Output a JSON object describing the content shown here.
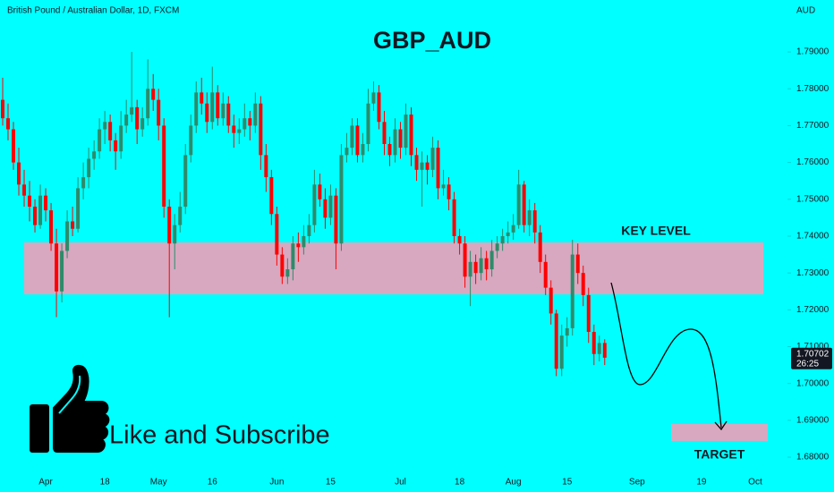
{
  "chart_data": {
    "type": "candlestick",
    "header": "British Pound / Australian Dollar, 1D, FXCM",
    "currency": "AUD",
    "title": "GBP_AUD",
    "caption": "Like and Subscribe",
    "up_color": "#2e8b6a",
    "down_color": "#ff0000",
    "ylim": [
      1.6754,
      1.8041
    ],
    "yticks": [
      {
        "value": 1.68,
        "label": "1.68000"
      },
      {
        "value": 1.69,
        "label": "1.69000"
      },
      {
        "value": 1.7,
        "label": "1.70000"
      },
      {
        "value": 1.71,
        "label": "1.71000"
      },
      {
        "value": 1.72,
        "label": "1.72000"
      },
      {
        "value": 1.73,
        "label": "1.73000"
      },
      {
        "value": 1.74,
        "label": "1.74000"
      },
      {
        "value": 1.75,
        "label": "1.75000"
      },
      {
        "value": 1.76,
        "label": "1.76000"
      },
      {
        "value": 1.77,
        "label": "1.77000"
      },
      {
        "value": 1.78,
        "label": "1.78000"
      },
      {
        "value": 1.79,
        "label": "1.79000"
      }
    ],
    "xlim": [
      -0.5,
      146
    ],
    "xticks": [
      {
        "value": 8,
        "label": "Apr"
      },
      {
        "value": 19,
        "label": "18"
      },
      {
        "value": 29,
        "label": "May"
      },
      {
        "value": 39,
        "label": "16"
      },
      {
        "value": 51,
        "label": "Jun"
      },
      {
        "value": 61,
        "label": "15"
      },
      {
        "value": 74,
        "label": "Jul"
      },
      {
        "value": 85,
        "label": "18"
      },
      {
        "value": 95,
        "label": "Aug"
      },
      {
        "value": 105,
        "label": "15"
      },
      {
        "value": 118,
        "label": "Sep"
      },
      {
        "value": 130,
        "label": "19"
      },
      {
        "value": 140,
        "label": "Oct"
      }
    ],
    "last_price": {
      "value": 1.70702,
      "label": "1.70702"
    },
    "countdown": "26:25",
    "zones": [
      {
        "label": "KEY LEVEL",
        "range": [
          1.7242,
          1.7383
        ],
        "color": "#d8a8c0"
      },
      {
        "label": "TARGET",
        "range": [
          1.6844,
          1.689
        ],
        "color": "#d8a8c0"
      }
    ],
    "candles": [
      [
        1.777,
        1.783,
        1.77,
        1.772
      ],
      [
        1.772,
        1.776,
        1.766,
        1.769
      ],
      [
        1.769,
        1.771,
        1.758,
        1.76
      ],
      [
        1.76,
        1.764,
        1.751,
        1.754
      ],
      [
        1.754,
        1.758,
        1.748,
        1.751
      ],
      [
        1.751,
        1.755,
        1.744,
        1.748
      ],
      [
        1.748,
        1.75,
        1.741,
        1.743
      ],
      [
        1.743,
        1.754,
        1.742,
        1.751
      ],
      [
        1.751,
        1.753,
        1.744,
        1.747
      ],
      [
        1.747,
        1.749,
        1.736,
        1.738
      ],
      [
        1.738,
        1.742,
        1.718,
        1.725
      ],
      [
        1.725,
        1.738,
        1.722,
        1.736
      ],
      [
        1.736,
        1.747,
        1.734,
        1.744
      ],
      [
        1.744,
        1.748,
        1.74,
        1.742
      ],
      [
        1.742,
        1.756,
        1.741,
        1.753
      ],
      [
        1.753,
        1.76,
        1.75,
        1.756
      ],
      [
        1.756,
        1.764,
        1.753,
        1.761
      ],
      [
        1.761,
        1.766,
        1.758,
        1.763
      ],
      [
        1.763,
        1.772,
        1.761,
        1.769
      ],
      [
        1.769,
        1.774,
        1.765,
        1.771
      ],
      [
        1.771,
        1.773,
        1.763,
        1.766
      ],
      [
        1.766,
        1.768,
        1.758,
        1.763
      ],
      [
        1.763,
        1.774,
        1.761,
        1.77
      ],
      [
        1.77,
        1.777,
        1.768,
        1.773
      ],
      [
        1.773,
        1.79,
        1.771,
        1.775
      ],
      [
        1.775,
        1.777,
        1.765,
        1.769
      ],
      [
        1.769,
        1.775,
        1.767,
        1.772
      ],
      [
        1.772,
        1.788,
        1.77,
        1.78
      ],
      [
        1.78,
        1.784,
        1.774,
        1.777
      ],
      [
        1.777,
        1.78,
        1.766,
        1.77
      ],
      [
        1.77,
        1.772,
        1.745,
        1.748
      ],
      [
        1.748,
        1.75,
        1.718,
        1.738
      ],
      [
        1.738,
        1.746,
        1.731,
        1.743
      ],
      [
        1.743,
        1.752,
        1.741,
        1.748
      ],
      [
        1.748,
        1.765,
        1.746,
        1.762
      ],
      [
        1.762,
        1.773,
        1.76,
        1.77
      ],
      [
        1.77,
        1.782,
        1.768,
        1.779
      ],
      [
        1.779,
        1.783,
        1.773,
        1.776
      ],
      [
        1.776,
        1.779,
        1.768,
        1.771
      ],
      [
        1.771,
        1.786,
        1.769,
        1.779
      ],
      [
        1.779,
        1.781,
        1.77,
        1.772
      ],
      [
        1.772,
        1.779,
        1.77,
        1.776
      ],
      [
        1.776,
        1.778,
        1.768,
        1.77
      ],
      [
        1.77,
        1.773,
        1.764,
        1.768
      ],
      [
        1.768,
        1.772,
        1.765,
        1.769
      ],
      [
        1.769,
        1.776,
        1.767,
        1.772
      ],
      [
        1.772,
        1.774,
        1.766,
        1.77
      ],
      [
        1.77,
        1.779,
        1.768,
        1.776
      ],
      [
        1.776,
        1.778,
        1.758,
        1.762
      ],
      [
        1.762,
        1.765,
        1.752,
        1.756
      ],
      [
        1.756,
        1.758,
        1.743,
        1.746
      ],
      [
        1.746,
        1.748,
        1.732,
        1.735
      ],
      [
        1.735,
        1.737,
        1.727,
        1.729
      ],
      [
        1.729,
        1.734,
        1.727,
        1.731
      ],
      [
        1.731,
        1.74,
        1.728,
        1.738
      ],
      [
        1.738,
        1.741,
        1.733,
        1.737
      ],
      [
        1.737,
        1.743,
        1.735,
        1.74
      ],
      [
        1.74,
        1.746,
        1.738,
        1.743
      ],
      [
        1.743,
        1.758,
        1.741,
        1.754
      ],
      [
        1.754,
        1.757,
        1.748,
        1.75
      ],
      [
        1.75,
        1.753,
        1.742,
        1.745
      ],
      [
        1.745,
        1.754,
        1.743,
        1.751
      ],
      [
        1.751,
        1.753,
        1.731,
        1.738
      ],
      [
        1.738,
        1.765,
        1.736,
        1.762
      ],
      [
        1.762,
        1.768,
        1.76,
        1.764
      ],
      [
        1.764,
        1.772,
        1.762,
        1.77
      ],
      [
        1.77,
        1.772,
        1.76,
        1.762
      ],
      [
        1.762,
        1.768,
        1.76,
        1.765
      ],
      [
        1.765,
        1.78,
        1.763,
        1.776
      ],
      [
        1.776,
        1.782,
        1.774,
        1.779
      ],
      [
        1.779,
        1.781,
        1.769,
        1.771
      ],
      [
        1.771,
        1.774,
        1.762,
        1.765
      ],
      [
        1.765,
        1.767,
        1.759,
        1.762
      ],
      [
        1.762,
        1.772,
        1.76,
        1.769
      ],
      [
        1.769,
        1.771,
        1.761,
        1.764
      ],
      [
        1.764,
        1.776,
        1.762,
        1.773
      ],
      [
        1.773,
        1.775,
        1.759,
        1.762
      ],
      [
        1.762,
        1.764,
        1.755,
        1.758
      ],
      [
        1.758,
        1.763,
        1.748,
        1.76
      ],
      [
        1.76,
        1.762,
        1.754,
        1.758
      ],
      [
        1.758,
        1.767,
        1.756,
        1.764
      ],
      [
        1.764,
        1.766,
        1.75,
        1.753
      ],
      [
        1.753,
        1.758,
        1.751,
        1.754
      ],
      [
        1.754,
        1.756,
        1.747,
        1.75
      ],
      [
        1.75,
        1.752,
        1.738,
        1.74
      ],
      [
        1.74,
        1.742,
        1.735,
        1.738
      ],
      [
        1.738,
        1.74,
        1.726,
        1.729
      ],
      [
        1.729,
        1.736,
        1.721,
        1.733
      ],
      [
        1.733,
        1.735,
        1.727,
        1.73
      ],
      [
        1.73,
        1.737,
        1.728,
        1.734
      ],
      [
        1.734,
        1.736,
        1.728,
        1.731
      ],
      [
        1.731,
        1.739,
        1.729,
        1.736
      ],
      [
        1.736,
        1.74,
        1.734,
        1.738
      ],
      [
        1.738,
        1.742,
        1.736,
        1.74
      ],
      [
        1.74,
        1.744,
        1.738,
        1.741
      ],
      [
        1.741,
        1.746,
        1.739,
        1.743
      ],
      [
        1.743,
        1.758,
        1.742,
        1.754
      ],
      [
        1.754,
        1.755,
        1.741,
        1.743
      ],
      [
        1.743,
        1.75,
        1.74,
        1.747
      ],
      [
        1.747,
        1.749,
        1.738,
        1.741
      ],
      [
        1.741,
        1.743,
        1.73,
        1.733
      ],
      [
        1.733,
        1.735,
        1.724,
        1.726
      ],
      [
        1.726,
        1.728,
        1.716,
        1.719
      ],
      [
        1.719,
        1.72,
        1.702,
        1.704
      ],
      [
        1.704,
        1.716,
        1.702,
        1.713
      ],
      [
        1.713,
        1.718,
        1.71,
        1.715
      ],
      [
        1.715,
        1.739,
        1.713,
        1.735
      ],
      [
        1.735,
        1.738,
        1.727,
        1.73
      ],
      [
        1.73,
        1.732,
        1.721,
        1.724
      ],
      [
        1.724,
        1.726,
        1.711,
        1.714
      ],
      [
        1.714,
        1.716,
        1.705,
        1.708
      ],
      [
        1.708,
        1.713,
        1.706,
        1.711
      ],
      [
        1.711,
        1.712,
        1.705,
        1.707
      ]
    ]
  }
}
